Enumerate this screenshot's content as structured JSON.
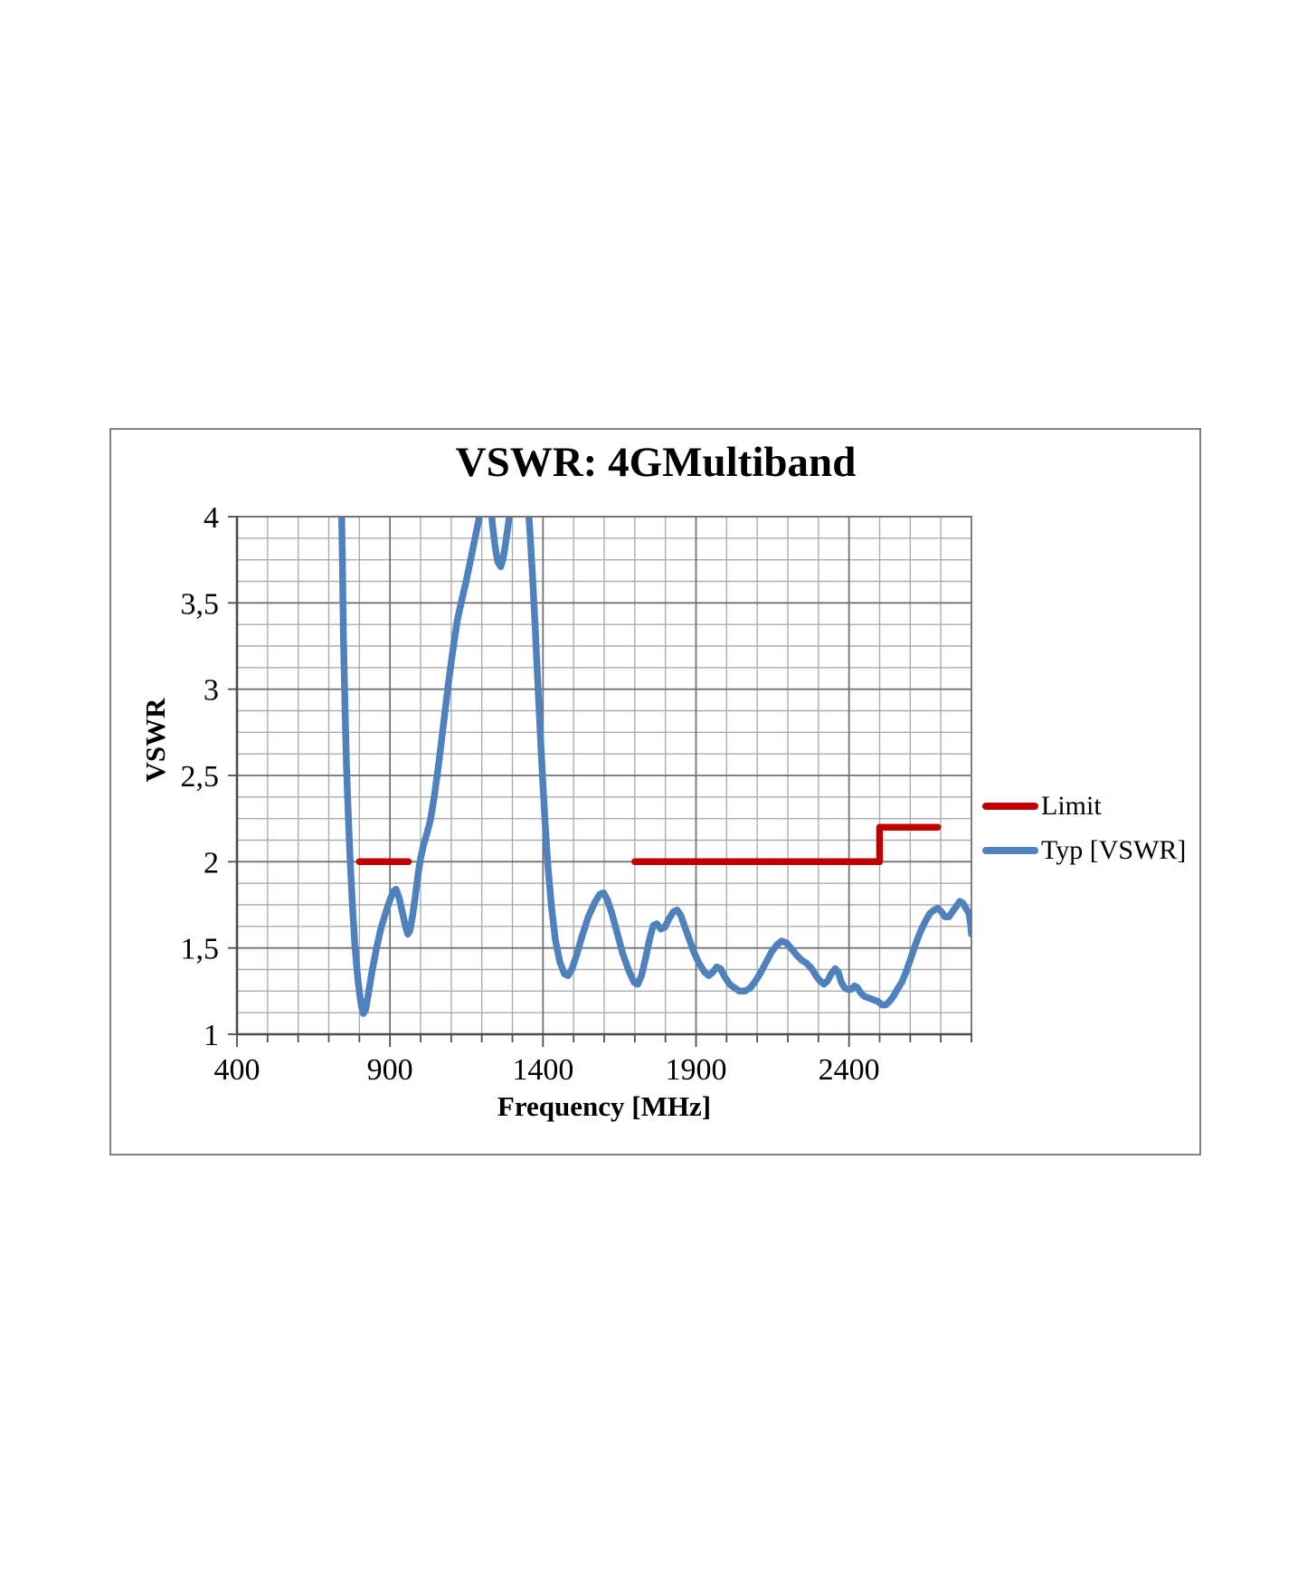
{
  "chart": {
    "title": "VSWR: 4GMultiband",
    "x_axis_title": "Frequency [MHz]",
    "y_axis_title": "VSWR"
  },
  "chart_data": {
    "type": "line",
    "title": "VSWR: 4GMultiband",
    "xlabel": "Frequency [MHz]",
    "ylabel": "VSWR",
    "xlim": [
      400,
      2800
    ],
    "ylim": [
      1,
      4
    ],
    "x_major_ticks": [
      400,
      900,
      1400,
      1900,
      2400
    ],
    "x_tick_labels": [
      "400",
      "900",
      "1400",
      "1900",
      "2400"
    ],
    "x_minor_step": 100,
    "y_major_ticks": [
      1,
      1.5,
      2,
      2.5,
      3,
      3.5,
      4
    ],
    "y_tick_labels": [
      "1",
      "1,5",
      "2",
      "2,5",
      "3",
      "3,5",
      "4"
    ],
    "y_minor_step": 0.125,
    "grid": "both-major-and-minor",
    "legend_position": "right-middle",
    "colors": {
      "limit": "#c00000",
      "typ": "#4f81bd",
      "grid_minor": "#adadad",
      "grid_major": "#737373",
      "axis": "#4d4d4d"
    },
    "series": [
      {
        "name": "Limit",
        "color": "#c00000",
        "type": "step-segments",
        "segments": [
          [
            [
              800,
              2.0
            ],
            [
              960,
              2.0
            ]
          ],
          [
            [
              1700,
              2.0
            ],
            [
              2500,
              2.0
            ],
            [
              2500,
              2.2
            ],
            [
              2690,
              2.2
            ]
          ]
        ]
      },
      {
        "name": "Typ [VSWR]",
        "color": "#4f81bd",
        "type": "trace",
        "points": [
          [
            738,
            4.4
          ],
          [
            744,
            3.8
          ],
          [
            748,
            3.3
          ],
          [
            753,
            2.9
          ],
          [
            758,
            2.55
          ],
          [
            764,
            2.25
          ],
          [
            770,
            2.0
          ],
          [
            777,
            1.75
          ],
          [
            785,
            1.52
          ],
          [
            795,
            1.32
          ],
          [
            805,
            1.18
          ],
          [
            813,
            1.12
          ],
          [
            820,
            1.14
          ],
          [
            830,
            1.24
          ],
          [
            842,
            1.37
          ],
          [
            856,
            1.5
          ],
          [
            870,
            1.61
          ],
          [
            885,
            1.7
          ],
          [
            900,
            1.78
          ],
          [
            912,
            1.83
          ],
          [
            920,
            1.84
          ],
          [
            930,
            1.79
          ],
          [
            940,
            1.71
          ],
          [
            950,
            1.63
          ],
          [
            958,
            1.58
          ],
          [
            965,
            1.6
          ],
          [
            973,
            1.68
          ],
          [
            982,
            1.79
          ],
          [
            992,
            1.93
          ],
          [
            1000,
            2.02
          ],
          [
            1010,
            2.1
          ],
          [
            1020,
            2.16
          ],
          [
            1032,
            2.24
          ],
          [
            1045,
            2.38
          ],
          [
            1060,
            2.58
          ],
          [
            1075,
            2.8
          ],
          [
            1090,
            3.02
          ],
          [
            1105,
            3.22
          ],
          [
            1120,
            3.4
          ],
          [
            1135,
            3.52
          ],
          [
            1148,
            3.62
          ],
          [
            1160,
            3.72
          ],
          [
            1175,
            3.85
          ],
          [
            1190,
            3.98
          ],
          [
            1200,
            4.1
          ],
          [
            1215,
            4.4
          ],
          [
            1228,
            4.1
          ],
          [
            1235,
            3.95
          ],
          [
            1244,
            3.82
          ],
          [
            1252,
            3.74
          ],
          [
            1262,
            3.71
          ],
          [
            1270,
            3.76
          ],
          [
            1278,
            3.85
          ],
          [
            1286,
            3.95
          ],
          [
            1294,
            4.05
          ],
          [
            1302,
            4.25
          ],
          [
            1340,
            4.3
          ],
          [
            1350,
            4.1
          ],
          [
            1358,
            3.9
          ],
          [
            1366,
            3.65
          ],
          [
            1374,
            3.38
          ],
          [
            1382,
            3.08
          ],
          [
            1390,
            2.78
          ],
          [
            1398,
            2.5
          ],
          [
            1407,
            2.22
          ],
          [
            1416,
            1.98
          ],
          [
            1427,
            1.75
          ],
          [
            1440,
            1.55
          ],
          [
            1455,
            1.42
          ],
          [
            1470,
            1.35
          ],
          [
            1482,
            1.34
          ],
          [
            1495,
            1.38
          ],
          [
            1510,
            1.46
          ],
          [
            1528,
            1.57
          ],
          [
            1548,
            1.68
          ],
          [
            1568,
            1.76
          ],
          [
            1585,
            1.81
          ],
          [
            1598,
            1.82
          ],
          [
            1610,
            1.78
          ],
          [
            1625,
            1.7
          ],
          [
            1642,
            1.59
          ],
          [
            1660,
            1.47
          ],
          [
            1680,
            1.37
          ],
          [
            1698,
            1.3
          ],
          [
            1710,
            1.29
          ],
          [
            1722,
            1.34
          ],
          [
            1735,
            1.44
          ],
          [
            1748,
            1.55
          ],
          [
            1760,
            1.63
          ],
          [
            1772,
            1.64
          ],
          [
            1785,
            1.61
          ],
          [
            1798,
            1.62
          ],
          [
            1812,
            1.67
          ],
          [
            1826,
            1.71
          ],
          [
            1838,
            1.72
          ],
          [
            1850,
            1.69
          ],
          [
            1862,
            1.63
          ],
          [
            1876,
            1.56
          ],
          [
            1892,
            1.48
          ],
          [
            1910,
            1.41
          ],
          [
            1928,
            1.36
          ],
          [
            1942,
            1.34
          ],
          [
            1955,
            1.36
          ],
          [
            1968,
            1.39
          ],
          [
            1980,
            1.38
          ],
          [
            1995,
            1.33
          ],
          [
            2010,
            1.29
          ],
          [
            2025,
            1.27
          ],
          [
            2042,
            1.25
          ],
          [
            2060,
            1.25
          ],
          [
            2078,
            1.27
          ],
          [
            2095,
            1.31
          ],
          [
            2112,
            1.36
          ],
          [
            2130,
            1.42
          ],
          [
            2148,
            1.48
          ],
          [
            2165,
            1.52
          ],
          [
            2180,
            1.54
          ],
          [
            2195,
            1.53
          ],
          [
            2210,
            1.5
          ],
          [
            2228,
            1.46
          ],
          [
            2245,
            1.43
          ],
          [
            2262,
            1.41
          ],
          [
            2278,
            1.38
          ],
          [
            2292,
            1.34
          ],
          [
            2305,
            1.31
          ],
          [
            2318,
            1.29
          ],
          [
            2330,
            1.31
          ],
          [
            2342,
            1.35
          ],
          [
            2355,
            1.38
          ],
          [
            2365,
            1.36
          ],
          [
            2375,
            1.3
          ],
          [
            2385,
            1.27
          ],
          [
            2395,
            1.26
          ],
          [
            2408,
            1.26
          ],
          [
            2418,
            1.28
          ],
          [
            2428,
            1.27
          ],
          [
            2438,
            1.24
          ],
          [
            2450,
            1.22
          ],
          [
            2465,
            1.21
          ],
          [
            2480,
            1.2
          ],
          [
            2495,
            1.19
          ],
          [
            2508,
            1.17
          ],
          [
            2520,
            1.17
          ],
          [
            2532,
            1.19
          ],
          [
            2545,
            1.22
          ],
          [
            2558,
            1.26
          ],
          [
            2572,
            1.3
          ],
          [
            2586,
            1.36
          ],
          [
            2600,
            1.43
          ],
          [
            2615,
            1.51
          ],
          [
            2632,
            1.59
          ],
          [
            2648,
            1.65
          ],
          [
            2664,
            1.7
          ],
          [
            2678,
            1.72
          ],
          [
            2690,
            1.73
          ],
          [
            2702,
            1.71
          ],
          [
            2714,
            1.68
          ],
          [
            2726,
            1.68
          ],
          [
            2738,
            1.71
          ],
          [
            2750,
            1.74
          ],
          [
            2762,
            1.77
          ],
          [
            2772,
            1.76
          ],
          [
            2782,
            1.73
          ],
          [
            2792,
            1.7
          ],
          [
            2798,
            1.63
          ],
          [
            2800,
            1.58
          ]
        ]
      }
    ]
  }
}
